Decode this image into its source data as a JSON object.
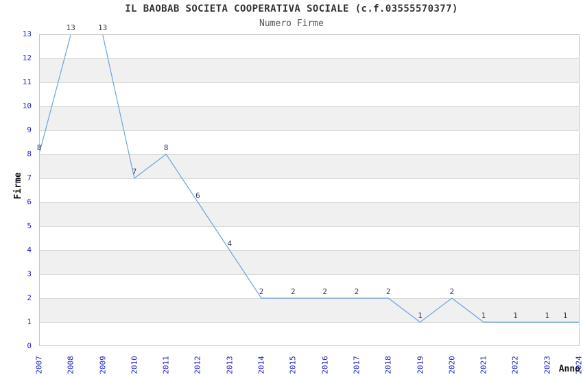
{
  "chart_data": {
    "type": "line",
    "title": "IL BAOBAB SOCIETA COOPERATIVA SOCIALE (c.f.03555570377)",
    "subtitle": "Numero Firme",
    "xlabel": "Anno",
    "ylabel": "Firme",
    "x": [
      2007,
      2008,
      2009,
      2010,
      2011,
      2012,
      2013,
      2014,
      2015,
      2016,
      2017,
      2018,
      2019,
      2020,
      2021,
      2022,
      2023,
      2024
    ],
    "series": [
      {
        "name": "Firme",
        "values": [
          8,
          13,
          13,
          7,
          8,
          6,
          4,
          2,
          2,
          2,
          2,
          2,
          1,
          2,
          1,
          1,
          1,
          1
        ]
      }
    ],
    "ylim": [
      0,
      13
    ],
    "ytick_step": 1,
    "xtick_rotation": -90,
    "grid": "alternating-horizontal-bands",
    "legend": "none",
    "data_labels": true
  },
  "colors": {
    "background": "#ffffff",
    "line": "#6ba3e0",
    "band": "#f0f0f0",
    "gridline": "#dadada",
    "plot_border": "#c6c6c6",
    "tick_label": "#2222cc",
    "data_label": "#333366",
    "title": "#333333",
    "subtitle": "#555555",
    "axis_title": "#111111"
  }
}
